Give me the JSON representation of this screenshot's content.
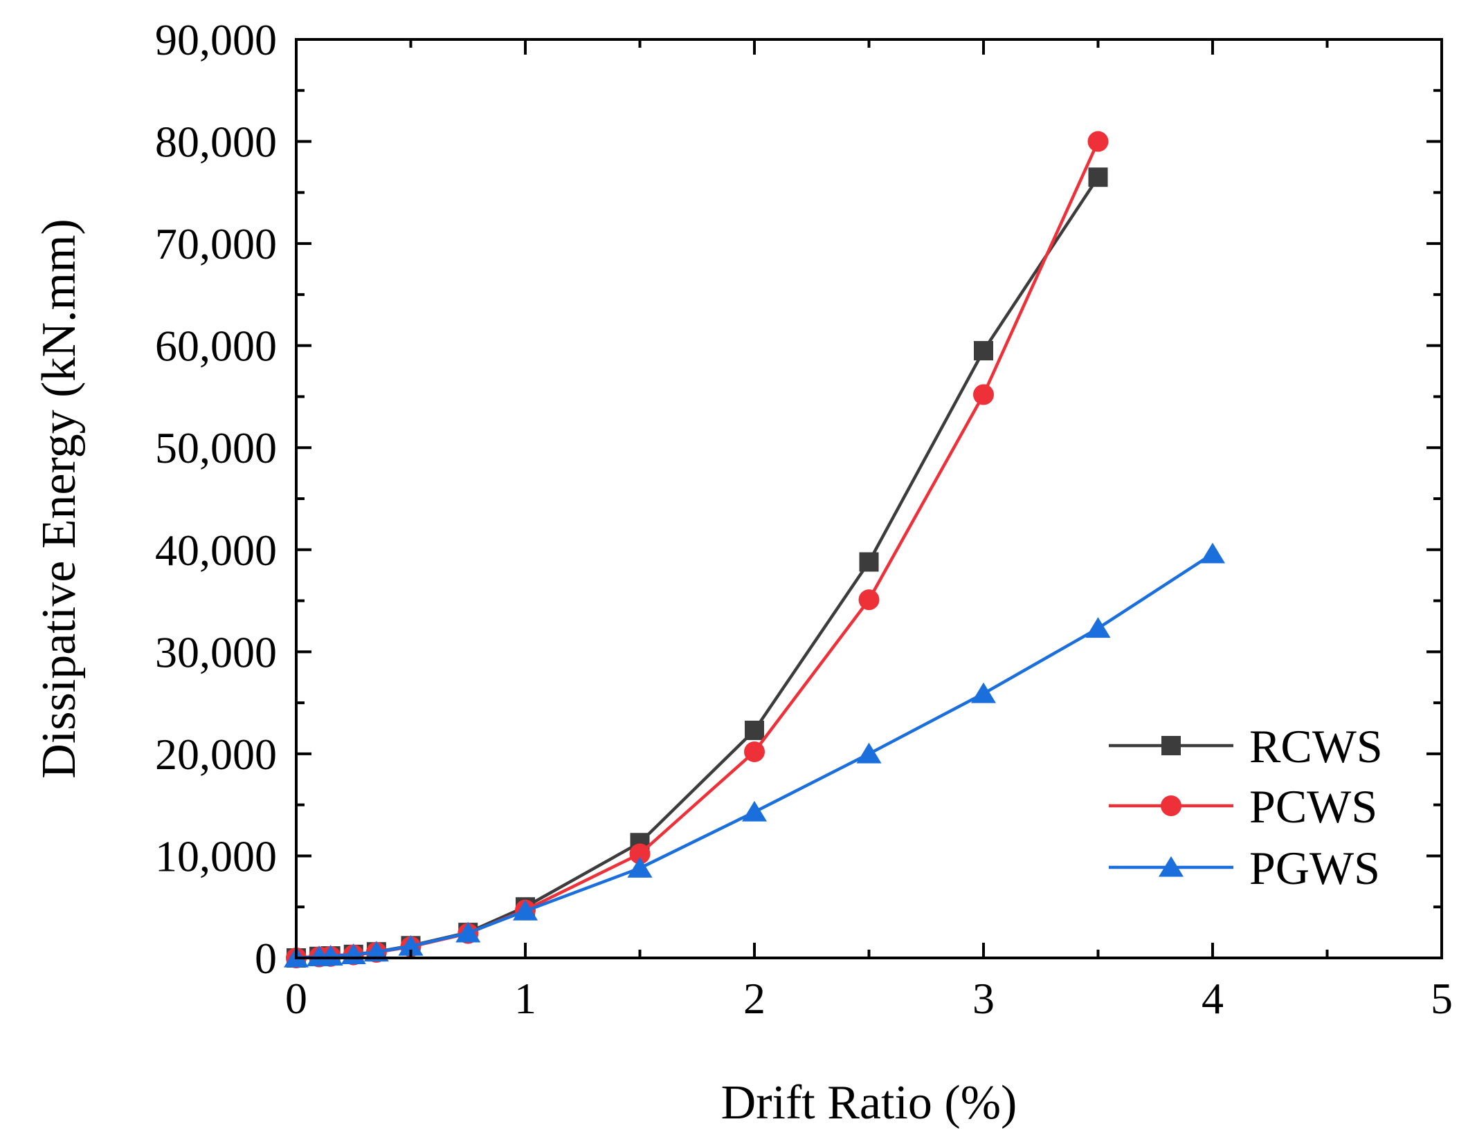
{
  "chart_data": {
    "type": "line",
    "title": "",
    "xlabel": "Drift Ratio (%)",
    "ylabel": "Dissipative Energy (kN.mm)",
    "xlim": [
      0,
      5
    ],
    "ylim": [
      0,
      90000
    ],
    "x_ticks": [
      0,
      1,
      2,
      3,
      4,
      5
    ],
    "x_tick_labels": [
      "0",
      "1",
      "2",
      "3",
      "4",
      "5"
    ],
    "y_ticks": [
      0,
      10000,
      20000,
      30000,
      40000,
      50000,
      60000,
      70000,
      80000,
      90000
    ],
    "y_tick_labels": [
      "0",
      "10,000",
      "20,000",
      "30,000",
      "40,000",
      "50,000",
      "60,000",
      "70,000",
      "80,000",
      "90,000"
    ],
    "grid": false,
    "legend_position": "bottom-right",
    "series": [
      {
        "name": "RCWS",
        "color": "#3c3c3c",
        "marker": "square",
        "x": [
          0,
          0.1,
          0.15,
          0.25,
          0.35,
          0.5,
          0.75,
          1,
          1.5,
          2,
          2.5,
          3,
          3.5
        ],
        "y": [
          0,
          150,
          200,
          350,
          600,
          1200,
          2500,
          5000,
          11300,
          22300,
          38800,
          59500,
          76500
        ]
      },
      {
        "name": "PCWS",
        "color": "#ee3038",
        "marker": "circle",
        "x": [
          0,
          0.1,
          0.15,
          0.25,
          0.35,
          0.5,
          0.75,
          1,
          1.5,
          2,
          2.5,
          3,
          3.5
        ],
        "y": [
          0,
          100,
          150,
          300,
          550,
          1100,
          2400,
          4700,
          10200,
          20200,
          35100,
          55200,
          80000
        ]
      },
      {
        "name": "PGWS",
        "color": "#1a6fdd",
        "marker": "triangle",
        "x": [
          0,
          0.1,
          0.15,
          0.25,
          0.35,
          0.5,
          0.75,
          1,
          1.5,
          2,
          2.5,
          3,
          3.5,
          4
        ],
        "y": [
          0,
          120,
          180,
          320,
          580,
          1150,
          2450,
          4600,
          8800,
          14300,
          20000,
          25900,
          32300,
          39600
        ]
      }
    ]
  }
}
